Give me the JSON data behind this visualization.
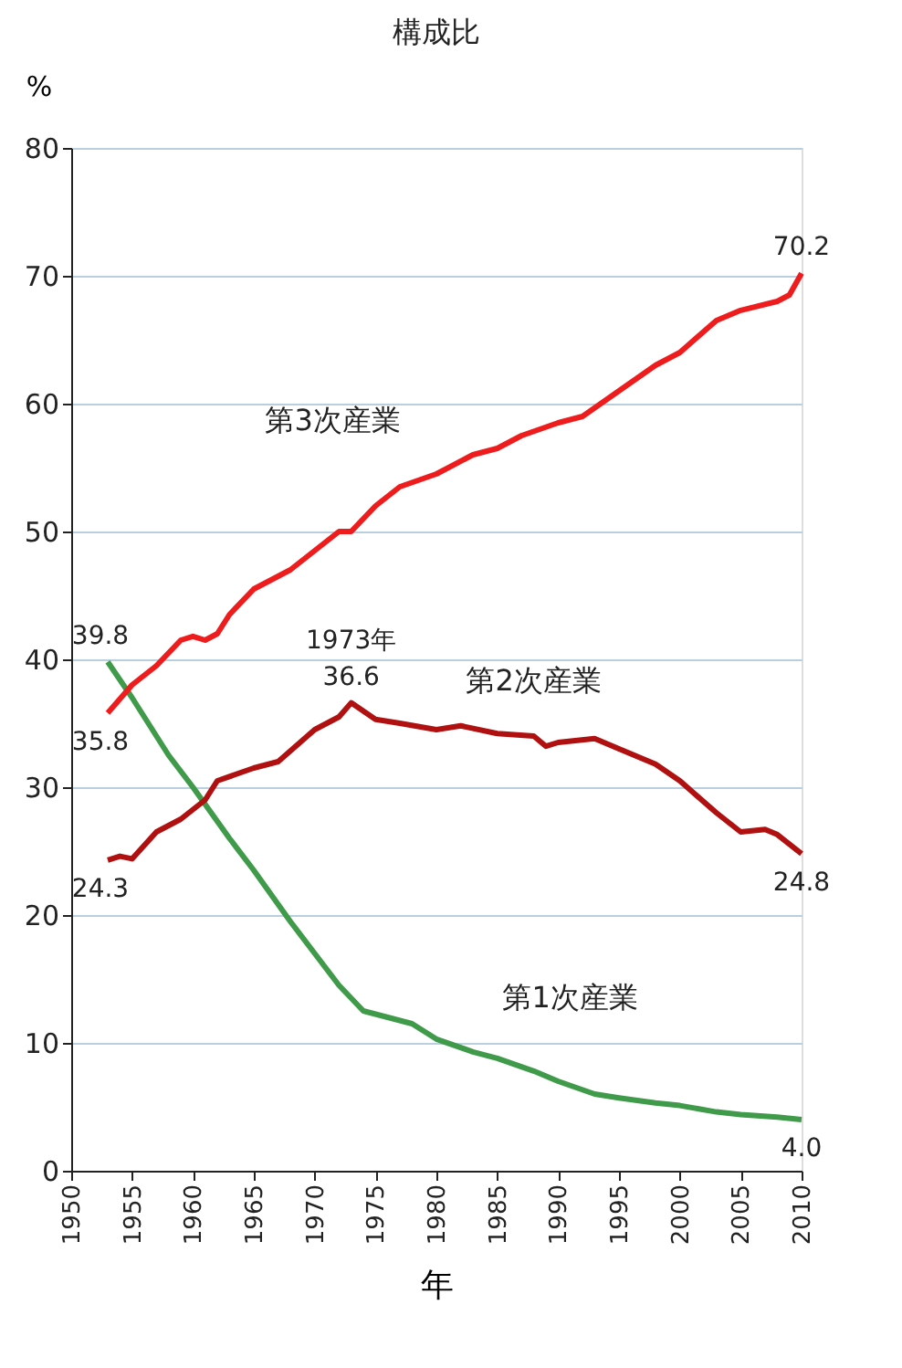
{
  "chart_data": {
    "type": "line",
    "title": "構成比",
    "xlabel": "年",
    "ylabel": "%",
    "xlim": [
      1950,
      2010
    ],
    "xticks": [
      1950,
      1955,
      1960,
      1965,
      1970,
      1975,
      1980,
      1985,
      1990,
      1995,
      2000,
      2005,
      2010
    ],
    "ylim": [
      0,
      80
    ],
    "yticks": [
      0,
      10,
      20,
      30,
      40,
      50,
      60,
      70,
      80
    ],
    "grid": "y",
    "legend": false,
    "marker": "none",
    "line_style": "solid",
    "series": [
      {
        "name": "第1次産業",
        "color": "#3f9a4a",
        "x": [
          1953,
          1955,
          1958,
          1960,
          1963,
          1965,
          1968,
          1970,
          1972,
          1974,
          1976,
          1978,
          1980,
          1983,
          1985,
          1988,
          1990,
          1993,
          1995,
          1998,
          2000,
          2003,
          2005,
          2008,
          2010
        ],
        "values": [
          39.8,
          37,
          32.5,
          30,
          26,
          23.5,
          19.5,
          17,
          14.5,
          12.5,
          12,
          11.5,
          10.3,
          9.3,
          8.8,
          7.8,
          7,
          6,
          5.7,
          5.3,
          5.1,
          4.6,
          4.4,
          4.2,
          4.0
        ]
      },
      {
        "name": "第2次産業",
        "color": "#b01010",
        "x": [
          1953,
          1954,
          1955,
          1957,
          1959,
          1961,
          1962,
          1965,
          1967,
          1970,
          1972,
          1973,
          1975,
          1977,
          1980,
          1982,
          1985,
          1988,
          1989,
          1990,
          1993,
          1995,
          1998,
          2000,
          2003,
          2005,
          2007,
          2008,
          2010
        ],
        "values": [
          24.3,
          24.6,
          24.4,
          26.5,
          27.5,
          29,
          30.5,
          31.5,
          32,
          34.5,
          35.5,
          36.6,
          35.3,
          35,
          34.5,
          34.8,
          34.2,
          34,
          33.2,
          33.5,
          33.8,
          33,
          31.8,
          30.5,
          28,
          26.5,
          26.7,
          26.3,
          24.8
        ]
      },
      {
        "name": "第3次産業",
        "color": "#ee1c1c",
        "x": [
          1953,
          1955,
          1957,
          1959,
          1960,
          1961,
          1962,
          1963,
          1965,
          1967,
          1968,
          1970,
          1972,
          1973,
          1975,
          1977,
          1980,
          1983,
          1985,
          1987,
          1990,
          1992,
          1995,
          1998,
          2000,
          2003,
          2005,
          2008,
          2009,
          2010
        ],
        "values": [
          35.8,
          38,
          39.5,
          41.5,
          41.8,
          41.5,
          42,
          43.5,
          45.5,
          46.5,
          47,
          48.5,
          50,
          50,
          52,
          53.5,
          54.5,
          56,
          56.5,
          57.5,
          58.5,
          59,
          61,
          63,
          64,
          66.5,
          67.3,
          68,
          68.5,
          70.2
        ]
      }
    ],
    "annotations": [
      {
        "text": "39.8",
        "x": 1953,
        "y": 39.8
      },
      {
        "text": "35.8",
        "x": 1953,
        "y": 35.8
      },
      {
        "text": "24.3",
        "x": 1953,
        "y": 24.3
      },
      {
        "text": "1973年",
        "x": 1973,
        "y": 36.6
      },
      {
        "text": "36.6",
        "x": 1973,
        "y": 36.6
      },
      {
        "text": "70.2",
        "x": 2010,
        "y": 70.2
      },
      {
        "text": "24.8",
        "x": 2010,
        "y": 24.8
      },
      {
        "text": "4.0",
        "x": 2010,
        "y": 4.0
      }
    ]
  }
}
